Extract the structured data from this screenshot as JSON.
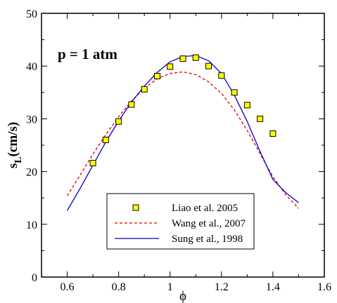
{
  "chart_data": {
    "type": "scatter",
    "annotation": "p = 1 atm",
    "xlabel": "ϕ",
    "ylabel_main": "s",
    "ylabel_sub": "L",
    "ylabel_rest": "(cm/s)",
    "xlim": [
      0.5,
      1.6
    ],
    "ylim": [
      0,
      50
    ],
    "xticks": [
      0.6,
      0.8,
      1,
      1.2,
      1.4,
      1.6
    ],
    "yticks": [
      0,
      10,
      20,
      30,
      40,
      50
    ],
    "legend_position": "bottom-center",
    "series": [
      {
        "name": "Liao et al. 2005",
        "kind": "markers",
        "marker_fill": "#ffff00",
        "marker_stroke": "#000000",
        "x": [
          0.7,
          0.75,
          0.8,
          0.85,
          0.9,
          0.95,
          1.0,
          1.05,
          1.1,
          1.15,
          1.2,
          1.25,
          1.3,
          1.35,
          1.4
        ],
        "y": [
          21.6,
          26.0,
          29.5,
          32.7,
          35.6,
          38.1,
          39.9,
          41.4,
          41.6,
          40.0,
          38.2,
          35.0,
          32.6,
          30.0,
          27.2
        ]
      },
      {
        "name": "Wang et al., 2007",
        "kind": "dashed-line",
        "color": "#dd0000",
        "x": [
          0.6,
          0.65,
          0.7,
          0.75,
          0.8,
          0.85,
          0.9,
          0.95,
          1.0,
          1.05,
          1.1,
          1.15,
          1.2,
          1.25,
          1.3,
          1.35,
          1.4,
          1.45,
          1.5
        ],
        "y": [
          15.4,
          19.3,
          23.3,
          27.0,
          30.4,
          33.4,
          35.8,
          37.6,
          38.6,
          38.9,
          38.4,
          37.0,
          34.8,
          31.7,
          27.8,
          23.4,
          19.0,
          15.6,
          13.0
        ]
      },
      {
        "name": "Sung et al., 1998",
        "kind": "solid-line",
        "color": "#0000cc",
        "x": [
          0.6,
          0.65,
          0.7,
          0.75,
          0.8,
          0.85,
          0.9,
          0.95,
          1.0,
          1.05,
          1.1,
          1.15,
          1.2,
          1.25,
          1.3,
          1.35,
          1.4,
          1.45,
          1.5
        ],
        "y": [
          12.6,
          16.8,
          21.2,
          25.6,
          29.6,
          33.2,
          36.2,
          38.8,
          40.8,
          41.8,
          42.0,
          41.0,
          38.6,
          34.5,
          29.5,
          23.8,
          18.5,
          16.0,
          14.1
        ]
      }
    ]
  }
}
